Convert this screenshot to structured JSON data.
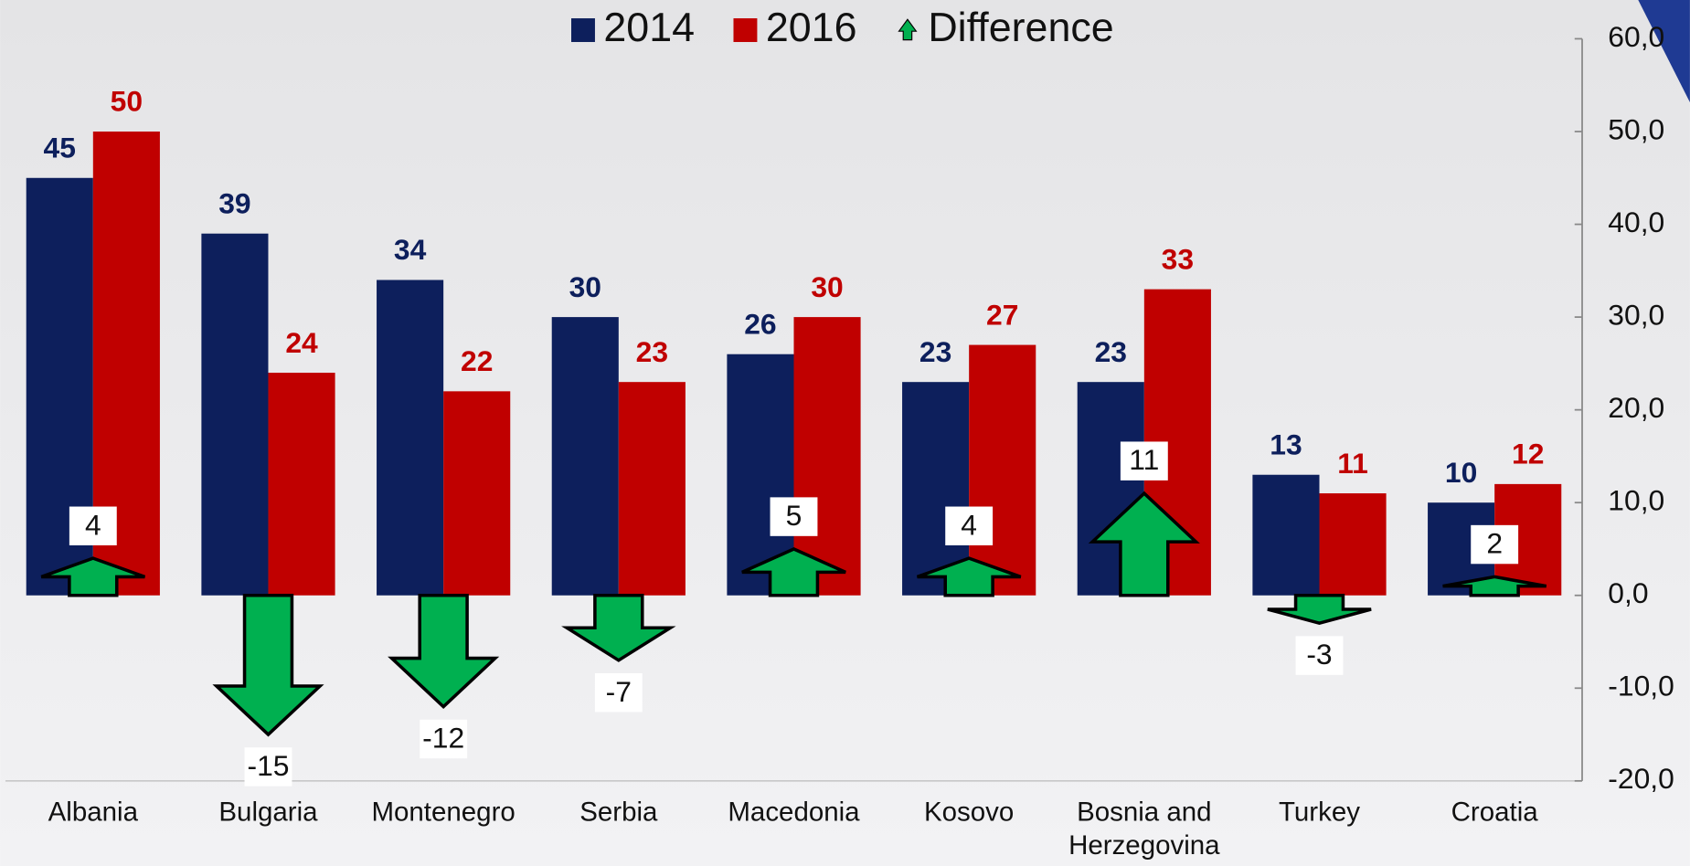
{
  "chart_data": {
    "type": "bar",
    "categories": [
      "Albania",
      "Bulgaria",
      "Montenegro",
      "Serbia",
      "Macedonia",
      "Kosovo",
      "Bosnia and Herzegovina",
      "Turkey",
      "Croatia"
    ],
    "series": [
      {
        "name": "2014",
        "color": "#0d1f5c",
        "values": [
          45,
          39,
          34,
          30,
          26,
          23,
          23,
          13,
          10
        ]
      },
      {
        "name": "2016",
        "color": "#c00000",
        "values": [
          50,
          24,
          22,
          23,
          30,
          27,
          33,
          11,
          12
        ]
      },
      {
        "name": "Difference",
        "color": "#00b050",
        "type": "arrow",
        "values": [
          4,
          -15,
          -12,
          -7,
          5,
          4,
          11,
          -3,
          2
        ]
      }
    ],
    "ylim": [
      -20,
      60
    ],
    "yticks": [
      {
        "value": -20,
        "label": "-20,0"
      },
      {
        "value": -10,
        "label": "-10,0"
      },
      {
        "value": 0,
        "label": "0,0"
      },
      {
        "value": 10,
        "label": "10,0"
      },
      {
        "value": 20,
        "label": "20,0"
      },
      {
        "value": 30,
        "label": "30,0"
      },
      {
        "value": 40,
        "label": "40,0"
      },
      {
        "value": 50,
        "label": "50,0"
      },
      {
        "value": 60,
        "label": "60,0"
      }
    ],
    "y_axis_side": "right",
    "legend": "top"
  }
}
